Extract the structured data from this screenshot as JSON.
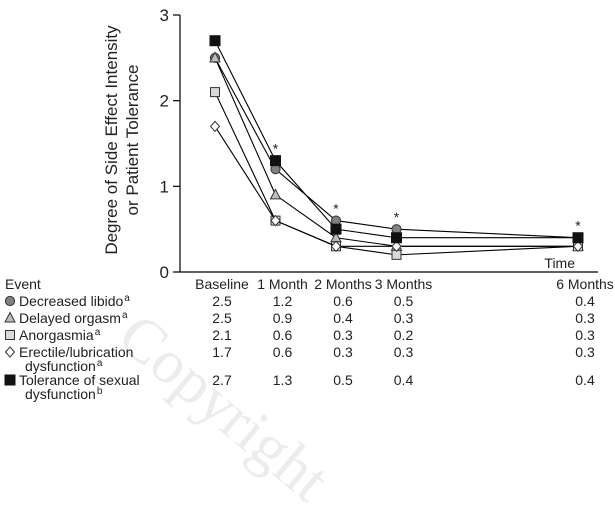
{
  "chart_data": {
    "type": "line",
    "ylabel": "Degree of Side Effect Intensity\nor Patient Tolerance",
    "xlabel": "Time",
    "y_ticks": [
      "0",
      "1",
      "2",
      "3"
    ],
    "ylim": [
      0,
      3
    ],
    "categories": [
      "Baseline",
      "1 Month",
      "2 Months",
      "3 Months",
      "6 Months"
    ],
    "x_months": [
      0,
      1,
      2,
      3,
      6
    ],
    "event_header": "Event",
    "significance_marker": "*",
    "significance_categories": [
      "1 Month",
      "2 Months",
      "3 Months",
      "6 Months"
    ],
    "series": [
      {
        "name": "Decreased libido",
        "label_lines": [
          "Decreased libido"
        ],
        "superscript": "a",
        "marker": "circle",
        "color": "#808080",
        "values": [
          2.5,
          1.2,
          0.6,
          0.5,
          0.4
        ]
      },
      {
        "name": "Delayed orgasm",
        "label_lines": [
          "Delayed orgasm"
        ],
        "superscript": "a",
        "marker": "triangle",
        "color": "#bdbdbd",
        "values": [
          2.5,
          0.9,
          0.4,
          0.3,
          0.3
        ]
      },
      {
        "name": "Anorgasmia",
        "label_lines": [
          "Anorgasmia"
        ],
        "superscript": "a",
        "marker": "square-open",
        "color": "#d9d9d9",
        "values": [
          2.1,
          0.6,
          0.3,
          0.2,
          0.3
        ]
      },
      {
        "name": "Erectile/lubrication dysfunction",
        "label_lines": [
          "Erectile/lubrication",
          "dysfunction"
        ],
        "superscript": "a",
        "marker": "diamond-open",
        "color": "#ffffff",
        "values": [
          1.7,
          0.6,
          0.3,
          0.3,
          0.3
        ]
      },
      {
        "name": "Tolerance of sexual dysfunction",
        "label_lines": [
          "Tolerance of sexual",
          "dysfunction"
        ],
        "superscript": "b",
        "marker": "square",
        "color": "#111111",
        "values": [
          2.7,
          1.3,
          0.5,
          0.4,
          0.4
        ]
      }
    ],
    "table": {
      "rows": [
        [
          "2.5",
          "1.2",
          "0.6",
          "0.5",
          "0.4"
        ],
        [
          "2.5",
          "0.9",
          "0.4",
          "0.3",
          "0.3"
        ],
        [
          "2.1",
          "0.6",
          "0.3",
          "0.2",
          "0.3"
        ],
        [
          "1.7",
          "0.6",
          "0.3",
          "0.3",
          "0.3"
        ],
        [
          "2.7",
          "1.3",
          "0.5",
          "0.4",
          "0.4"
        ]
      ]
    },
    "grid": false,
    "legend": "table-below-chart"
  },
  "watermark": "Copyright",
  "colors": {
    "line": "#000000",
    "axis": "#000000",
    "asterisk": "#555555"
  }
}
